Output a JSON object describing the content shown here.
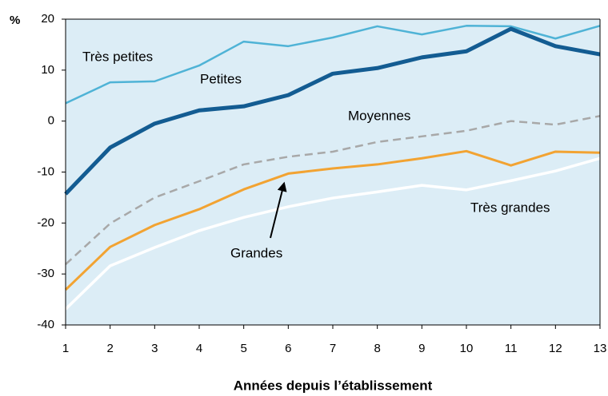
{
  "chart_data": {
    "type": "line",
    "y_unit_label": "%",
    "x_label": "Années depuis l’établissement",
    "x": [
      1,
      2,
      3,
      4,
      5,
      6,
      7,
      8,
      9,
      10,
      11,
      12,
      13
    ],
    "xlim": [
      1,
      13
    ],
    "xticks": [
      1,
      2,
      3,
      4,
      5,
      6,
      7,
      8,
      9,
      10,
      11,
      12,
      13
    ],
    "ylim": [
      -40,
      20
    ],
    "yticks": [
      -40,
      -30,
      -20,
      -10,
      0,
      10,
      20
    ],
    "background": "#dcedf6",
    "series": [
      {
        "name": "Très petites",
        "color": "#4fb3d6",
        "values": [
          3.5,
          7.6,
          7.8,
          10.9,
          15.6,
          14.7,
          16.4,
          18.6,
          17.0,
          18.7,
          18.6,
          16.2,
          18.7
        ]
      },
      {
        "name": "Petites",
        "color": "#135c92",
        "values": [
          -14.3,
          -5.2,
          -0.5,
          2.1,
          2.9,
          5.1,
          9.3,
          10.4,
          12.5,
          13.7,
          18.1,
          14.7,
          13.1
        ]
      },
      {
        "name": "Moyennes",
        "color": "#a8a8a8",
        "dashed": true,
        "values": [
          -28.1,
          -20.1,
          -15.0,
          -11.8,
          -8.5,
          -7.0,
          -6.0,
          -4.1,
          -3.0,
          -1.9,
          0.0,
          -0.7,
          1.0
        ]
      },
      {
        "name": "Grandes",
        "color": "#f2a332",
        "values": [
          -33.1,
          -24.7,
          -20.4,
          -17.3,
          -13.4,
          -10.3,
          -9.3,
          -8.5,
          -7.3,
          -5.9,
          -8.7,
          -6.0,
          -6.2
        ]
      },
      {
        "name": "Très grandes",
        "color": "#ffffff",
        "values": [
          -36.9,
          -28.4,
          -24.8,
          -21.5,
          -18.9,
          -16.8,
          -15.1,
          -13.9,
          -12.6,
          -13.5,
          -11.7,
          -9.8,
          -7.3
        ]
      }
    ]
  }
}
